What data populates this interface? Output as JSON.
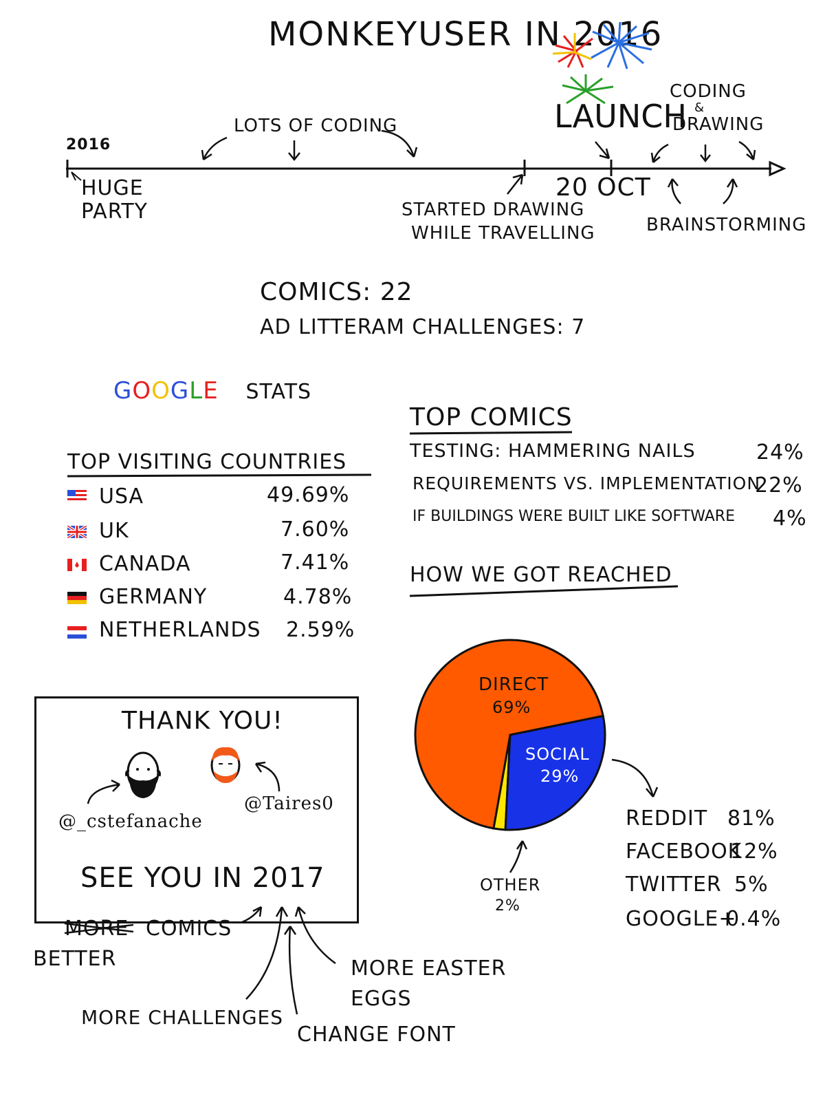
{
  "title": "MONKEYUSER IN 2016",
  "timeline": {
    "start_year": "2016",
    "huge_party": [
      "HUGE",
      "PARTY"
    ],
    "lots_of_coding": "LOTS OF CODING",
    "started_drawing": [
      "STARTED DRAWING",
      "WHILE TRAVELLING"
    ],
    "launch": "LAUNCH",
    "launch_date": "20 OCT",
    "coding_drawing": [
      "CODING",
      "&",
      "DRAWING"
    ],
    "brainstorming": "BRAINSTORMING"
  },
  "totals": {
    "comics": "COMICS: 22",
    "challenges": "AD LITTERAM CHALLENGES: 7"
  },
  "google_stats": {
    "google_word": [
      "G",
      "O",
      "O",
      "G",
      "L",
      "E"
    ],
    "google_colors": [
      "#2b4fd8",
      "#e62020",
      "#f2c200",
      "#2b4fd8",
      "#2aa02a",
      "#e62020"
    ],
    "stats_word": "STATS",
    "countries_title": "TOP VISITING COUNTRIES",
    "countries": [
      {
        "name": "USA",
        "value": "49.69%",
        "flag": "us-flag-icon"
      },
      {
        "name": "UK",
        "value": "7.60%",
        "flag": "uk-flag-icon"
      },
      {
        "name": "CANADA",
        "value": "7.41%",
        "flag": "canada-flag-icon"
      },
      {
        "name": "GERMANY",
        "value": "4.78%",
        "flag": "germany-flag-icon"
      },
      {
        "name": "NETHERLANDS",
        "value": "2.59%",
        "flag": "netherlands-flag-icon"
      }
    ]
  },
  "top_comics": {
    "title": "TOP COMICS",
    "items": [
      {
        "name": "TESTING: HAMMERING NAILS",
        "value": "24%"
      },
      {
        "name": "REQUIREMENTS VS. IMPLEMENTATION",
        "value": "22%"
      },
      {
        "name": "IF BUILDINGS WERE BUILT LIKE SOFTWARE",
        "value": "4%"
      }
    ]
  },
  "reach": {
    "title": "HOW WE GOT REACHED",
    "social_breakdown": [
      {
        "name": "REDDIT",
        "value": "81%"
      },
      {
        "name": "FACEBOOK",
        "value": "12%"
      },
      {
        "name": "TWITTER",
        "value": "5%"
      },
      {
        "name": "GOOGLE+",
        "value": "0.4%"
      }
    ]
  },
  "chart_data": {
    "type": "pie",
    "slices": [
      {
        "name": "DIRECT",
        "label": "69%",
        "value": 69,
        "color": "#ff5a00"
      },
      {
        "name": "SOCIAL",
        "label": "29%",
        "value": 29,
        "color": "#1832e8"
      },
      {
        "name": "OTHER",
        "label": "2%",
        "value": 2,
        "color": "#ffe600"
      }
    ]
  },
  "thanks": {
    "title": "THANK YOU!",
    "handle_left": "@_cstefanache",
    "handle_right": "@Taires0",
    "see_you": "SEE YOU IN 2017"
  },
  "plans": {
    "more_struck": "MORE",
    "comics_word": "COMICS",
    "better": "BETTER",
    "easter": [
      "MORE EASTER",
      "EGGS"
    ],
    "challenges": "MORE CHALLENGES",
    "font": "CHANGE FONT"
  }
}
